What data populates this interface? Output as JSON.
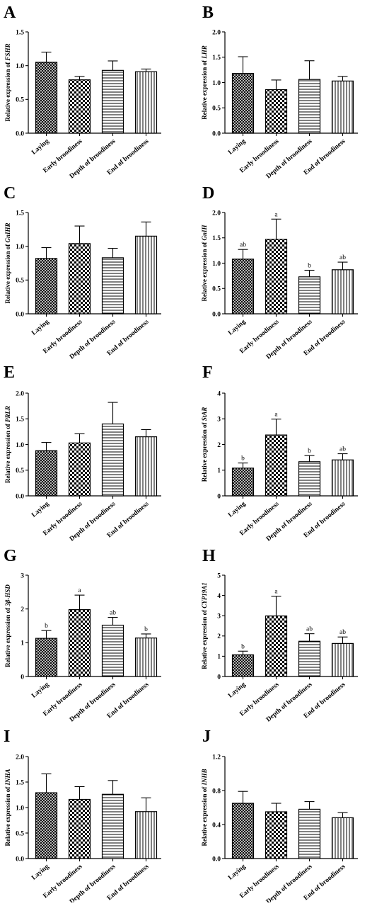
{
  "figure": {
    "categories": [
      "Laying",
      "Early broodiness",
      "Depth of broodiness",
      "End of broodiness"
    ],
    "patterns": [
      "crosshatch",
      "checker",
      "horizontal",
      "vertical"
    ],
    "colors": {
      "ink": "#000000",
      "background": "#ffffff"
    }
  },
  "chart_data": [
    {
      "panel": "A",
      "type": "bar",
      "ylabel_prefix": "Relative expression of ",
      "gene": "FSHR",
      "categories": [
        "Laying",
        "Early broodiness",
        "Depth of broodiness",
        "End of broodiness"
      ],
      "values": [
        1.05,
        0.79,
        0.93,
        0.91
      ],
      "errors": [
        0.15,
        0.05,
        0.14,
        0.04
      ],
      "significance": [
        "",
        "",
        "",
        ""
      ],
      "ylim": [
        0,
        1.5
      ],
      "yticks": [
        "0.0",
        "0.5",
        "1.0",
        "1.5"
      ]
    },
    {
      "panel": "B",
      "type": "bar",
      "ylabel_prefix": "Relative expression of ",
      "gene": "LHR",
      "categories": [
        "Laying",
        "Early broodiness",
        "Depth of broodiness",
        "End of broodiness"
      ],
      "values": [
        1.18,
        0.86,
        1.06,
        1.03
      ],
      "errors": [
        0.33,
        0.19,
        0.37,
        0.09
      ],
      "significance": [
        "",
        "",
        "",
        ""
      ],
      "ylim": [
        0,
        2.0
      ],
      "yticks": [
        "0.0",
        "0.5",
        "1.0",
        "1.5",
        "2.0"
      ]
    },
    {
      "panel": "C",
      "type": "bar",
      "ylabel_prefix": "Relative expression of ",
      "gene": "GnIHR",
      "categories": [
        "Laying",
        "Early broodiness",
        "Depth of broodiness",
        "End of broodiness"
      ],
      "values": [
        0.82,
        1.04,
        0.83,
        1.15
      ],
      "errors": [
        0.16,
        0.26,
        0.14,
        0.21
      ],
      "significance": [
        "",
        "",
        "",
        ""
      ],
      "ylim": [
        0,
        1.5
      ],
      "yticks": [
        "0.0",
        "0.5",
        "1.0",
        "1.5"
      ]
    },
    {
      "panel": "D",
      "type": "bar",
      "ylabel_prefix": "Relative expression of ",
      "gene": "GnIH",
      "categories": [
        "Laying",
        "Early broodiness",
        "Depth of broodiness",
        "End of broodiness"
      ],
      "values": [
        1.08,
        1.47,
        0.73,
        0.87
      ],
      "errors": [
        0.19,
        0.4,
        0.13,
        0.15
      ],
      "significance": [
        "ab",
        "a",
        "b",
        "ab"
      ],
      "ylim": [
        0,
        2.0
      ],
      "yticks": [
        "0.0",
        "0.5",
        "1.0",
        "1.5",
        "2.0"
      ]
    },
    {
      "panel": "E",
      "type": "bar",
      "ylabel_prefix": "Relative expression of ",
      "gene": "PRLR",
      "categories": [
        "Laying",
        "Early broodiness",
        "Depth of broodiness",
        "End of broodiness"
      ],
      "values": [
        0.88,
        1.03,
        1.4,
        1.15
      ],
      "errors": [
        0.16,
        0.18,
        0.42,
        0.14
      ],
      "significance": [
        "",
        "",
        "",
        ""
      ],
      "ylim": [
        0,
        2.0
      ],
      "yticks": [
        "0.0",
        "0.5",
        "1.0",
        "1.5",
        "2.0"
      ]
    },
    {
      "panel": "F",
      "type": "bar",
      "ylabel_prefix": "Relative expression of ",
      "gene": "StAR",
      "categories": [
        "Laying",
        "Early broodiness",
        "Depth of broodiness",
        "End of broodiness"
      ],
      "values": [
        1.08,
        2.37,
        1.33,
        1.4
      ],
      "errors": [
        0.2,
        0.62,
        0.24,
        0.24
      ],
      "significance": [
        "b",
        "a",
        "b",
        "ab"
      ],
      "ylim": [
        0,
        4
      ],
      "yticks": [
        "0",
        "1",
        "2",
        "3",
        "4"
      ]
    },
    {
      "panel": "G",
      "type": "bar",
      "ylabel_prefix": "Relative expression of ",
      "gene": "3β-HSD",
      "categories": [
        "Laying",
        "Early broodiness",
        "Depth of broodiness",
        "End of broodiness"
      ],
      "values": [
        1.13,
        1.98,
        1.52,
        1.14
      ],
      "errors": [
        0.23,
        0.43,
        0.23,
        0.12
      ],
      "significance": [
        "b",
        "a",
        "ab",
        "b"
      ],
      "ylim": [
        0,
        3
      ],
      "yticks": [
        "0",
        "1",
        "2",
        "3"
      ]
    },
    {
      "panel": "H",
      "type": "bar",
      "ylabel_prefix": "Relative expression of ",
      "gene": "CYP19A1",
      "categories": [
        "Laying",
        "Early broodiness",
        "Depth of broodiness",
        "End of broodiness"
      ],
      "values": [
        1.07,
        2.99,
        1.74,
        1.63
      ],
      "errors": [
        0.18,
        0.97,
        0.37,
        0.32
      ],
      "significance": [
        "b",
        "a",
        "ab",
        "ab"
      ],
      "ylim": [
        0,
        5
      ],
      "yticks": [
        "0",
        "1",
        "2",
        "3",
        "4",
        "5"
      ]
    },
    {
      "panel": "I",
      "type": "bar",
      "ylabel_prefix": "Relative expression of ",
      "gene": "INHA",
      "categories": [
        "Laying",
        "Early broodiness",
        "Depth of broodiness",
        "End of broodiness"
      ],
      "values": [
        1.29,
        1.16,
        1.26,
        0.92
      ],
      "errors": [
        0.37,
        0.25,
        0.27,
        0.27
      ],
      "significance": [
        "",
        "",
        "",
        ""
      ],
      "ylim": [
        0,
        2.0
      ],
      "yticks": [
        "0.0",
        "0.5",
        "1.0",
        "1.5",
        "2.0"
      ]
    },
    {
      "panel": "J",
      "type": "bar",
      "ylabel_prefix": "Relative expression of ",
      "gene": "INHB",
      "categories": [
        "Laying",
        "Early broodiness",
        "Depth of broodiness",
        "End of broodiness"
      ],
      "values": [
        0.65,
        0.55,
        0.58,
        0.48
      ],
      "errors": [
        0.14,
        0.1,
        0.09,
        0.06
      ],
      "significance": [
        "",
        "",
        "",
        ""
      ],
      "ylim": [
        0,
        1.2
      ],
      "yticks": [
        "0.0",
        "0.4",
        "0.8",
        "1.2"
      ]
    }
  ]
}
